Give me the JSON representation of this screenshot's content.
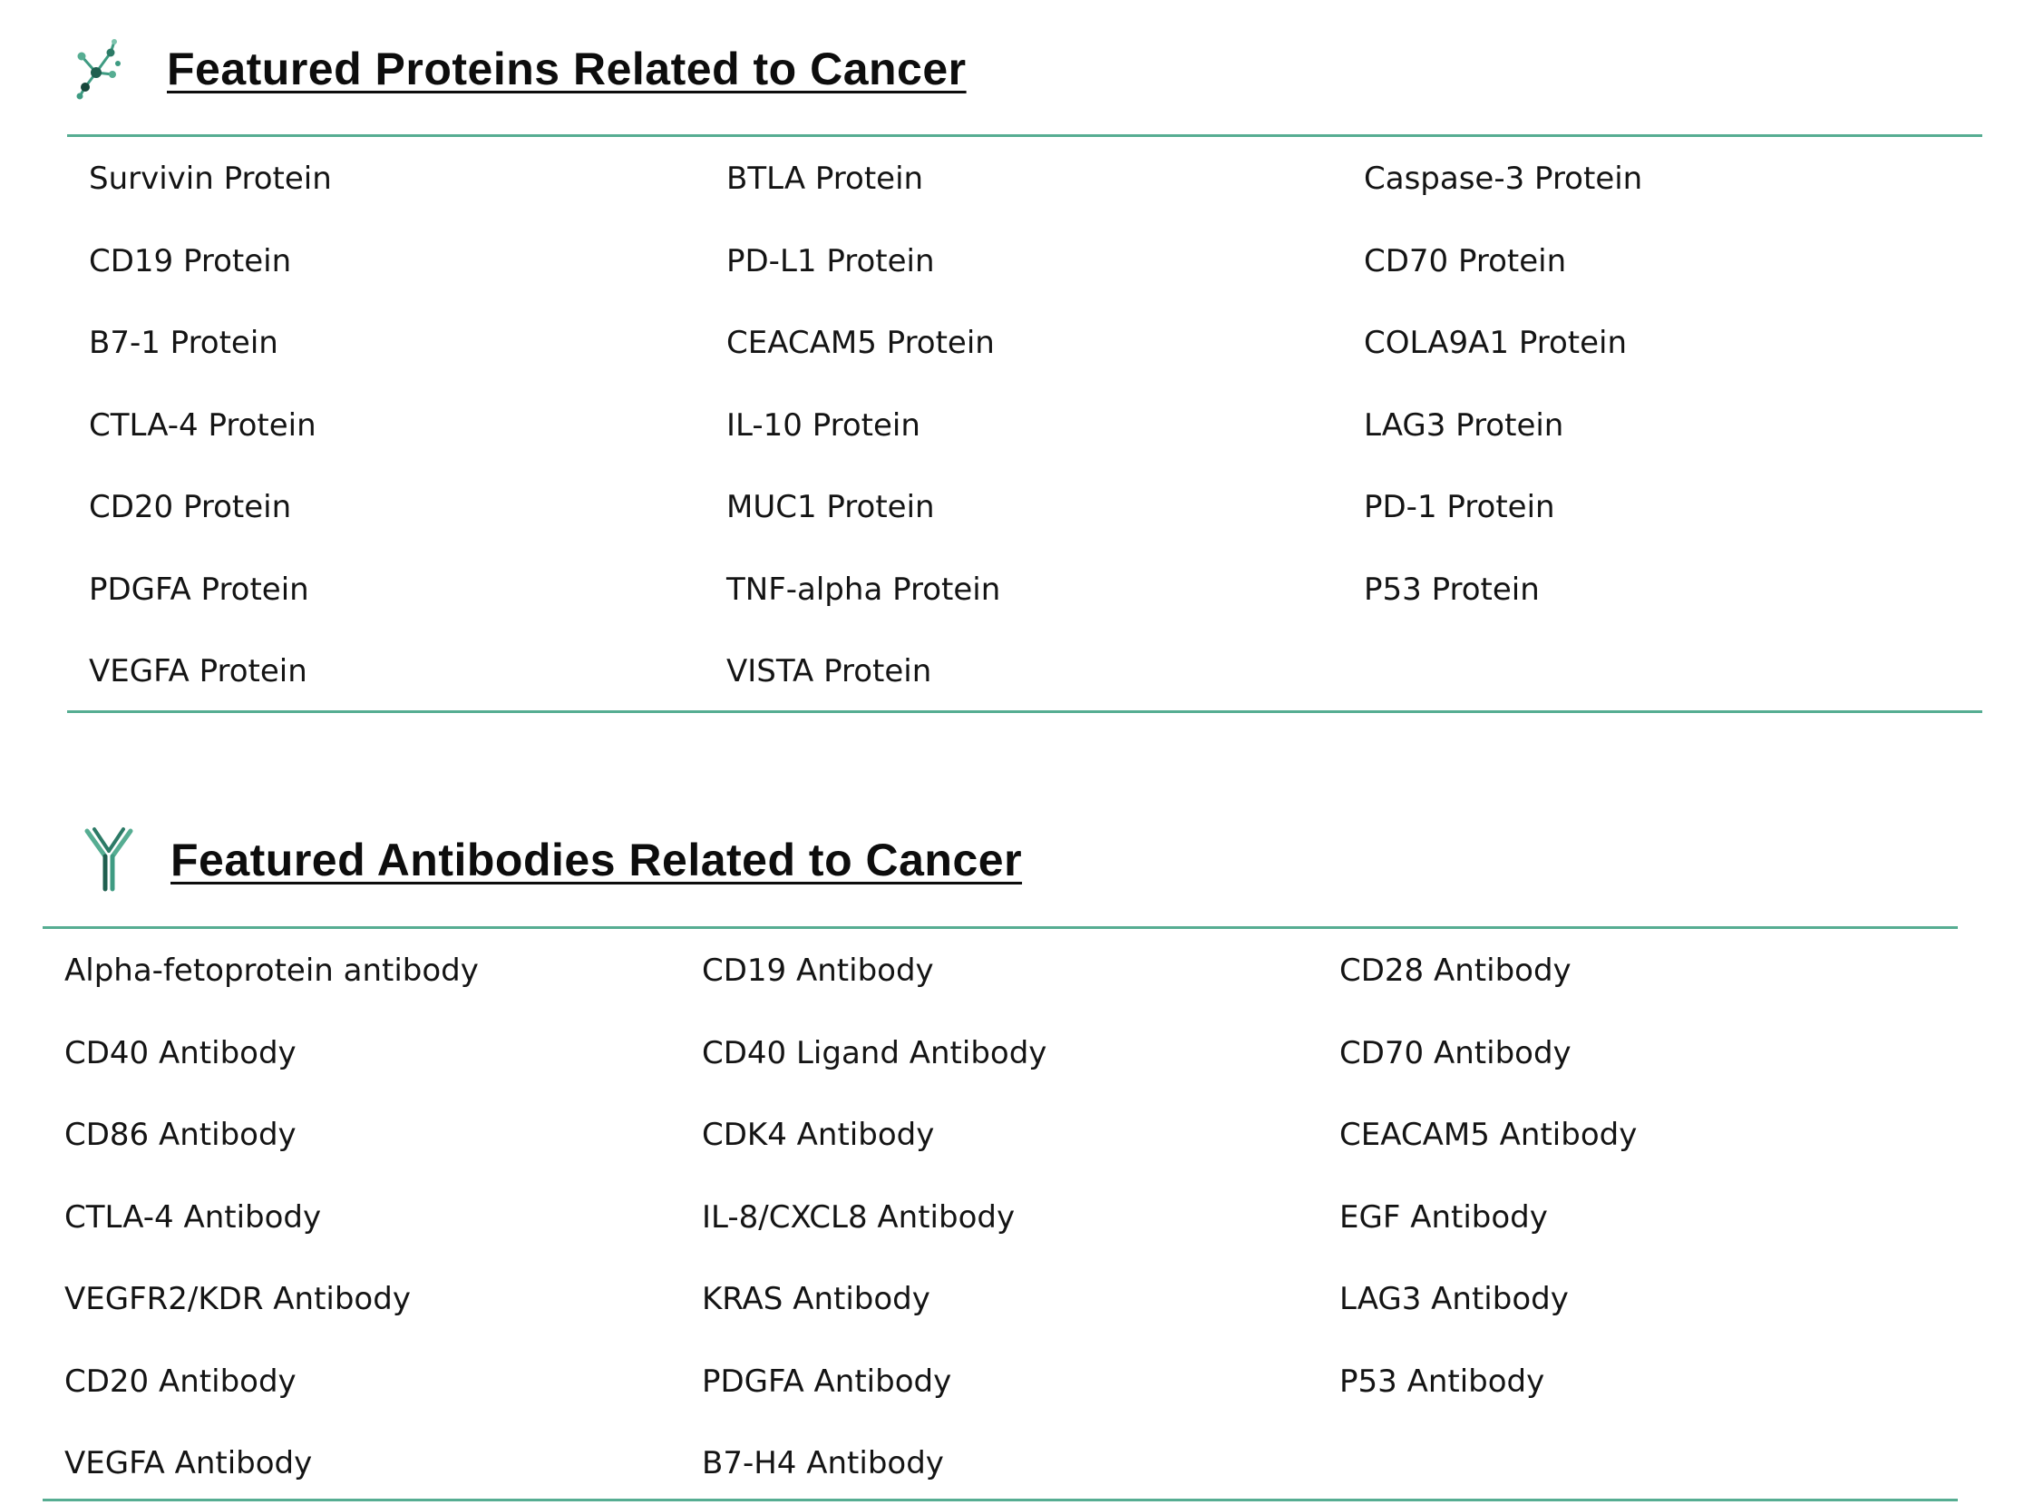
{
  "colors": {
    "accent_rule": "#56ad92",
    "heading_text": "#0d0d0d",
    "body_text": "#141414"
  },
  "proteins": {
    "icon": "molecule-network-icon",
    "title": "Featured Proteins Related to Cancer",
    "columns": [
      [
        "Survivin Protein",
        "CD19 Protein",
        "B7-1 Protein",
        "CTLA-4 Protein",
        "CD20 Protein",
        "PDGFA Protein",
        "VEGFA Protein"
      ],
      [
        "BTLA Protein",
        "PD-L1 Protein",
        "CEACAM5 Protein",
        "IL-10 Protein",
        "MUC1 Protein",
        "TNF-alpha Protein",
        "VISTA Protein"
      ],
      [
        "Caspase-3 Protein",
        "CD70 Protein",
        "COLA9A1 Protein",
        "LAG3 Protein",
        "PD-1 Protein",
        "P53 Protein"
      ]
    ]
  },
  "antibodies": {
    "icon": "antibody-y-icon",
    "title": "Featured Antibodies Related to Cancer",
    "columns": [
      [
        "Alpha-fetoprotein antibody",
        "CD40 Antibody",
        "CD86 Antibody",
        "CTLA-4 Antibody",
        "VEGFR2/KDR Antibody",
        "CD20 Antibody",
        "VEGFA Antibody"
      ],
      [
        "CD19 Antibody",
        "CD40 Ligand Antibody",
        "CDK4 Antibody",
        "IL-8/CXCL8 Antibody",
        "KRAS Antibody",
        "PDGFA Antibody",
        "B7-H4 Antibody"
      ],
      [
        "CD28 Antibody",
        "CD70 Antibody",
        "CEACAM5 Antibody",
        "EGF Antibody",
        "LAG3 Antibody",
        "P53 Antibody"
      ]
    ]
  }
}
